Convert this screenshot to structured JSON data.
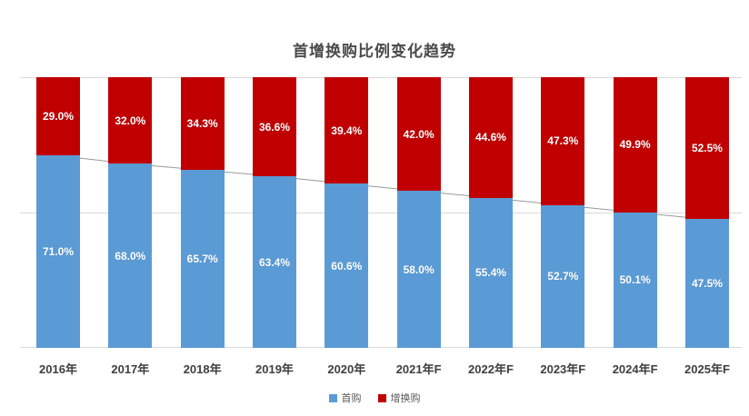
{
  "chart_data": {
    "type": "bar",
    "stacked": true,
    "percent_stacked": true,
    "title": "首增换购比例变化趋势",
    "categories": [
      "2016年",
      "2017年",
      "2018年",
      "2019年",
      "2020年",
      "2021年F",
      "2022年F",
      "2023年F",
      "2024年F",
      "2025年F"
    ],
    "series": [
      {
        "name": "首购",
        "color": "#5b9bd5",
        "values": [
          71.0,
          68.0,
          65.7,
          63.4,
          60.6,
          58.0,
          55.4,
          52.7,
          50.1,
          47.5
        ]
      },
      {
        "name": "增换购",
        "color": "#c00000",
        "values": [
          29.0,
          32.0,
          34.3,
          36.6,
          39.4,
          42.0,
          44.6,
          47.3,
          49.9,
          52.5
        ]
      }
    ],
    "value_label_format": "{value}%",
    "ylim": [
      0,
      100
    ],
    "gridlines_percent": [
      0,
      50,
      100
    ],
    "grid_on": true,
    "legend_position": "bottom",
    "annotations": "thin gray line traces the boundary between 首购 and 增换购 segments across bars"
  },
  "legend": [
    {
      "label": "首购",
      "color": "#5b9bd5"
    },
    {
      "label": "增换购",
      "color": "#c00000"
    }
  ],
  "colors": {
    "first_purchase_blue": "#5b9bd5",
    "replacement_red": "#c00000",
    "gridline": "#d9d9d9",
    "trend_line": "#999999",
    "title_text": "#4a4a4a",
    "axis_text": "#3f3f3f",
    "legend_text": "#595959",
    "bar_label_text": "#ffffff",
    "background": "#ffffff"
  }
}
